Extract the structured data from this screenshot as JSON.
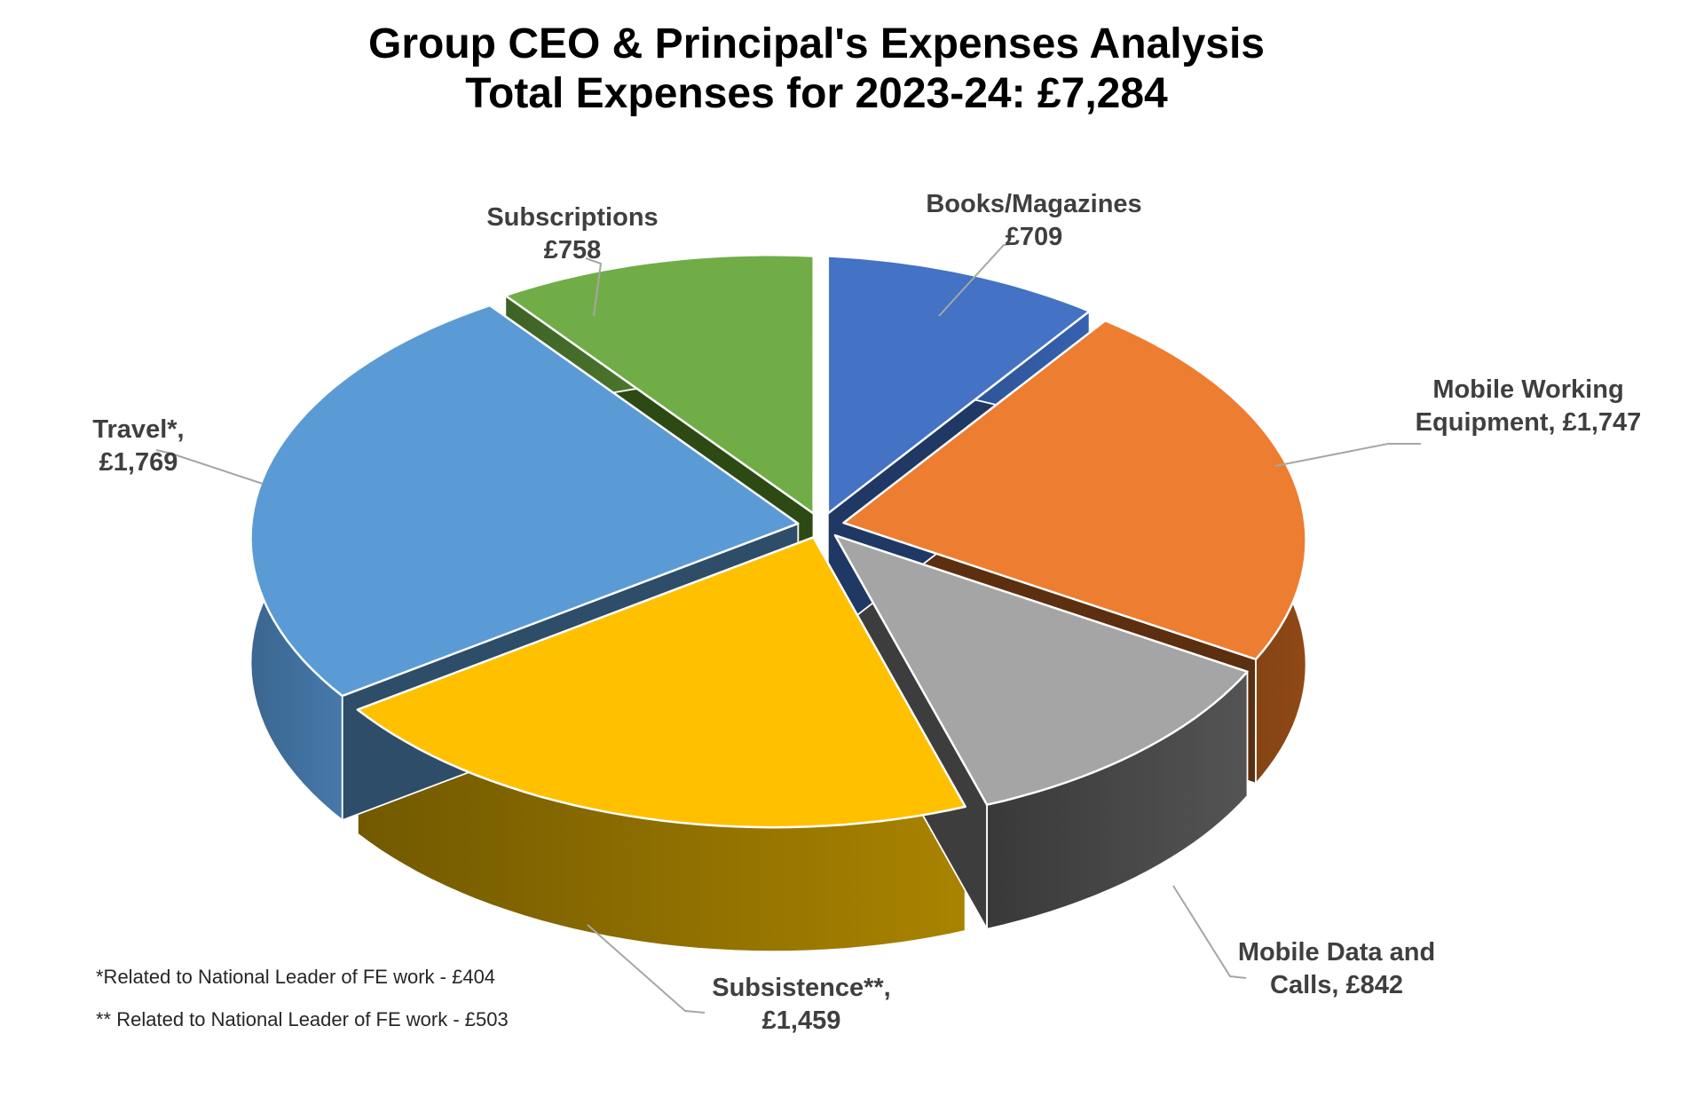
{
  "title": {
    "line1": "Group CEO & Principal's Expenses Analysis",
    "line2": "Total Expenses for 2023-24: £7,284"
  },
  "chart_data": {
    "type": "pie",
    "style": "3d-exploded",
    "title": "Group CEO & Principal's Expenses Analysis",
    "subtitle": "Total Expenses for 2023-24: £7,284",
    "total": 7284,
    "currency_symbol": "£",
    "start_angle_deg": 0,
    "direction": "clockwise",
    "legend_position": "none",
    "labels_outside": true,
    "background": "#FFFFFF",
    "label_color": "#3F3F3F",
    "leader_line_color": "#A6A6A6",
    "slices": [
      {
        "label": "Books/Magazines",
        "value": 709,
        "display": [
          "Books/Magazines",
          "£709"
        ],
        "color": "#4472C4",
        "rim": "#2E5395",
        "face": "#1F3864"
      },
      {
        "label": "Mobile Working Equipment",
        "value": 1747,
        "display": [
          "Mobile Working",
          "Equipment, £1,747"
        ],
        "color": "#ED7D31",
        "rim": "#7A3E13",
        "face": "#5C2F10"
      },
      {
        "label": "Mobile Data and Calls",
        "value": 842,
        "display": [
          "Mobile Data and",
          "Calls, £842"
        ],
        "color": "#A5A5A5",
        "rim": "#474747",
        "face": "#3D3D3D"
      },
      {
        "label": "Subsistence",
        "value": 1459,
        "display": [
          "Subsistence**,",
          "£1,459"
        ],
        "color": "#FFC000",
        "rim": "#8F6F00",
        "face": "#6B5300"
      },
      {
        "label": "Travel",
        "value": 1769,
        "display": [
          "Travel*,",
          "£1,769"
        ],
        "color": "#5B9BD5",
        "rim": "#4A80B4",
        "face": "#2E4D68"
      },
      {
        "label": "Subscriptions",
        "value": 758,
        "display": [
          "Subscriptions",
          "£758"
        ],
        "color": "#70AD47",
        "rim": "#4E7A2F",
        "face": "#2E4A14"
      }
    ]
  },
  "footnotes": [
    "*Related to National Leader of FE work - £404",
    "** Related to National Leader of FE work - £503"
  ]
}
